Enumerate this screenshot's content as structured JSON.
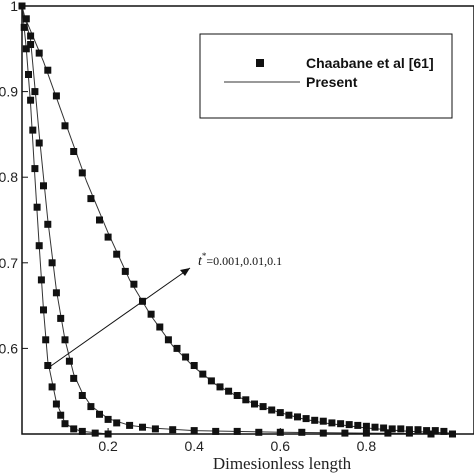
{
  "chart_data": {
    "type": "line",
    "xlabel": "Dimesionless length",
    "ylabel": "",
    "xlim": [
      0,
      1
    ],
    "ylim": [
      0.5,
      1.0
    ],
    "x_ticks": [
      "0.2",
      "0.4",
      "0.6",
      "0.8"
    ],
    "y_ticks": [
      "0.6",
      "0.7",
      "0.8",
      "0.9",
      "1"
    ],
    "legend": {
      "placement": "top-right",
      "entries": [
        {
          "label": "Chaabane et al [61]",
          "marker": "square"
        },
        {
          "label": "Present",
          "marker": "line"
        }
      ]
    },
    "annotation": {
      "prefix": "t",
      "superscript": "*",
      "values": "=0.001,0.01,0.1"
    },
    "series": [
      {
        "name": "Chaabane et al [61]",
        "kind": "scatter",
        "points": [
          [
            0.0,
            1.0
          ],
          [
            0.005,
            0.975
          ],
          [
            0.01,
            0.95
          ],
          [
            0.015,
            0.92
          ],
          [
            0.02,
            0.89
          ],
          [
            0.025,
            0.855
          ],
          [
            0.03,
            0.81
          ],
          [
            0.035,
            0.765
          ],
          [
            0.04,
            0.72
          ],
          [
            0.045,
            0.68
          ],
          [
            0.05,
            0.645
          ],
          [
            0.055,
            0.61
          ],
          [
            0.06,
            0.58
          ],
          [
            0.07,
            0.555
          ],
          [
            0.08,
            0.535
          ],
          [
            0.09,
            0.522
          ],
          [
            0.1,
            0.512
          ],
          [
            0.12,
            0.506
          ],
          [
            0.14,
            0.503
          ],
          [
            0.17,
            0.501
          ],
          [
            0.2,
            0.5
          ]
        ]
      },
      {
        "name": "Chaabane et al [61]",
        "kind": "scatter",
        "points": [
          [
            0.01,
            0.985
          ],
          [
            0.02,
            0.955
          ],
          [
            0.03,
            0.9
          ],
          [
            0.04,
            0.84
          ],
          [
            0.05,
            0.79
          ],
          [
            0.06,
            0.745
          ],
          [
            0.07,
            0.7
          ],
          [
            0.08,
            0.665
          ],
          [
            0.09,
            0.635
          ],
          [
            0.1,
            0.61
          ],
          [
            0.11,
            0.585
          ],
          [
            0.12,
            0.565
          ],
          [
            0.14,
            0.545
          ],
          [
            0.16,
            0.532
          ],
          [
            0.18,
            0.523
          ],
          [
            0.2,
            0.517
          ],
          [
            0.22,
            0.513
          ],
          [
            0.25,
            0.51
          ],
          [
            0.28,
            0.508
          ],
          [
            0.31,
            0.506
          ],
          [
            0.35,
            0.505
          ],
          [
            0.4,
            0.504
          ],
          [
            0.45,
            0.503
          ],
          [
            0.5,
            0.503
          ],
          [
            0.55,
            0.502
          ],
          [
            0.6,
            0.502
          ],
          [
            0.65,
            0.502
          ],
          [
            0.7,
            0.501
          ],
          [
            0.75,
            0.501
          ],
          [
            0.8,
            0.501
          ],
          [
            0.85,
            0.501
          ],
          [
            0.9,
            0.501
          ],
          [
            0.95,
            0.5
          ],
          [
            1.0,
            0.5
          ]
        ]
      },
      {
        "name": "Chaabane et al [61]",
        "kind": "scatter",
        "points": [
          [
            0.02,
            0.965
          ],
          [
            0.04,
            0.945
          ],
          [
            0.06,
            0.925
          ],
          [
            0.08,
            0.895
          ],
          [
            0.1,
            0.86
          ],
          [
            0.12,
            0.83
          ],
          [
            0.14,
            0.805
          ],
          [
            0.16,
            0.775
          ],
          [
            0.18,
            0.75
          ],
          [
            0.2,
            0.73
          ],
          [
            0.22,
            0.71
          ],
          [
            0.24,
            0.69
          ],
          [
            0.26,
            0.675
          ],
          [
            0.28,
            0.655
          ],
          [
            0.3,
            0.64
          ],
          [
            0.32,
            0.625
          ],
          [
            0.34,
            0.61
          ],
          [
            0.36,
            0.6
          ],
          [
            0.38,
            0.59
          ],
          [
            0.4,
            0.58
          ],
          [
            0.42,
            0.57
          ],
          [
            0.44,
            0.562
          ],
          [
            0.46,
            0.555
          ],
          [
            0.48,
            0.55
          ],
          [
            0.5,
            0.545
          ],
          [
            0.52,
            0.54
          ],
          [
            0.54,
            0.535
          ],
          [
            0.56,
            0.532
          ],
          [
            0.58,
            0.528
          ],
          [
            0.6,
            0.525
          ],
          [
            0.62,
            0.522
          ],
          [
            0.64,
            0.52
          ],
          [
            0.66,
            0.518
          ],
          [
            0.68,
            0.516
          ],
          [
            0.7,
            0.515
          ],
          [
            0.72,
            0.513
          ],
          [
            0.74,
            0.512
          ],
          [
            0.76,
            0.511
          ],
          [
            0.78,
            0.51
          ],
          [
            0.8,
            0.509
          ],
          [
            0.82,
            0.508
          ],
          [
            0.84,
            0.507
          ],
          [
            0.86,
            0.506
          ],
          [
            0.88,
            0.506
          ],
          [
            0.9,
            0.505
          ],
          [
            0.92,
            0.505
          ],
          [
            0.94,
            0.504
          ],
          [
            0.96,
            0.504
          ],
          [
            0.98,
            0.503
          ]
        ]
      },
      {
        "name": "Present",
        "kind": "line",
        "points": [
          [
            0.0,
            1.0
          ],
          [
            0.01,
            0.95
          ],
          [
            0.02,
            0.885
          ],
          [
            0.03,
            0.8
          ],
          [
            0.04,
            0.72
          ],
          [
            0.05,
            0.645
          ],
          [
            0.06,
            0.585
          ],
          [
            0.08,
            0.537
          ],
          [
            0.1,
            0.513
          ],
          [
            0.12,
            0.506
          ],
          [
            0.14,
            0.503
          ],
          [
            0.2,
            0.5
          ],
          [
            1.0,
            0.5
          ]
        ]
      },
      {
        "name": "Present",
        "kind": "line",
        "points": [
          [
            0.0,
            1.0
          ],
          [
            0.02,
            0.96
          ],
          [
            0.04,
            0.85
          ],
          [
            0.06,
            0.75
          ],
          [
            0.08,
            0.668
          ],
          [
            0.1,
            0.61
          ],
          [
            0.12,
            0.57
          ],
          [
            0.14,
            0.548
          ],
          [
            0.16,
            0.533
          ],
          [
            0.2,
            0.518
          ],
          [
            0.25,
            0.51
          ],
          [
            0.3,
            0.507
          ],
          [
            0.4,
            0.504
          ],
          [
            0.6,
            0.502
          ],
          [
            0.8,
            0.501
          ],
          [
            1.0,
            0.5
          ]
        ]
      },
      {
        "name": "Present",
        "kind": "line",
        "points": [
          [
            0.0,
            0.995
          ],
          [
            0.05,
            0.935
          ],
          [
            0.1,
            0.865
          ],
          [
            0.15,
            0.795
          ],
          [
            0.2,
            0.735
          ],
          [
            0.25,
            0.68
          ],
          [
            0.3,
            0.638
          ],
          [
            0.35,
            0.603
          ],
          [
            0.4,
            0.578
          ],
          [
            0.45,
            0.558
          ],
          [
            0.5,
            0.544
          ],
          [
            0.55,
            0.533
          ],
          [
            0.6,
            0.525
          ],
          [
            0.65,
            0.518
          ],
          [
            0.7,
            0.513
          ],
          [
            0.75,
            0.51
          ],
          [
            0.8,
            0.507
          ],
          [
            0.85,
            0.505
          ],
          [
            0.9,
            0.503
          ],
          [
            0.95,
            0.502
          ],
          [
            1.0,
            0.501
          ]
        ]
      }
    ]
  }
}
